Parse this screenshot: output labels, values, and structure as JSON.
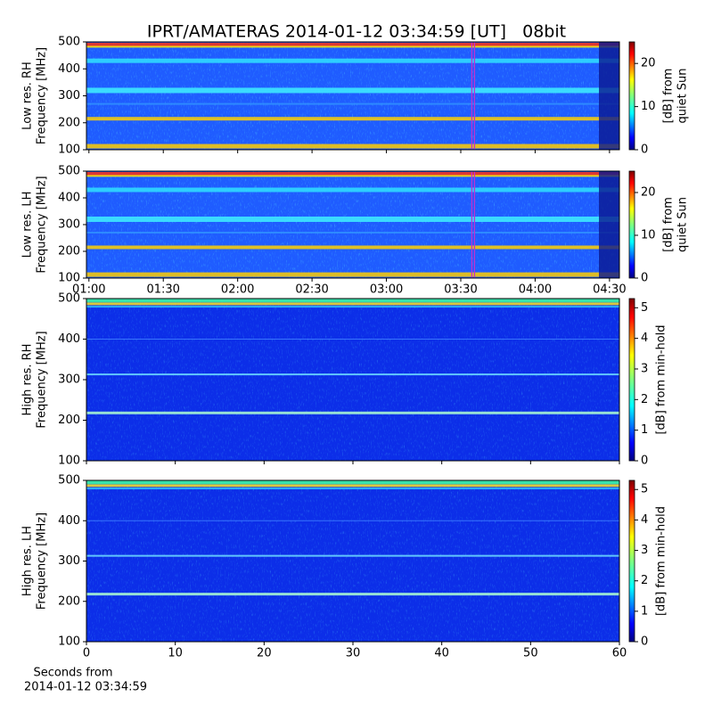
{
  "chart_data": [
    {
      "type": "spectrogram",
      "title": "IPRT/AMATERAS 2014-01-12 03:34:59 [UT]   08bit",
      "ylabel": [
        "Low res. RH",
        "Frequency [MHz]"
      ],
      "ylim": [
        100,
        500
      ],
      "yticks": [
        100,
        200,
        300,
        400,
        500
      ],
      "xlim": [
        59,
        274
      ],
      "xticks": [
        60,
        90,
        120,
        150,
        180,
        210,
        240,
        270
      ],
      "show_xtick_labels": false,
      "marker_x": 215,
      "marker_color": "#c030d0",
      "cmap": "jet",
      "clim": [
        0,
        25
      ],
      "cticks": [
        0,
        10,
        20
      ],
      "clabel": [
        "[dB] from",
        "quiet Sun"
      ]
    },
    {
      "type": "spectrogram",
      "ylabel": [
        "Low res. LH",
        "Frequency [MHz]"
      ],
      "ylim": [
        100,
        500
      ],
      "yticks": [
        100,
        200,
        300,
        400,
        500
      ],
      "xlim": [
        59,
        274
      ],
      "xticks": [
        {
          "value": 60,
          "label": "01:00"
        },
        {
          "value": 90,
          "label": "01:30"
        },
        {
          "value": 120,
          "label": "02:00"
        },
        {
          "value": 150,
          "label": "02:30"
        },
        {
          "value": 180,
          "label": "03:00"
        },
        {
          "value": 210,
          "label": "03:30"
        },
        {
          "value": 240,
          "label": "04:00"
        },
        {
          "value": 270,
          "label": "04:30"
        }
      ],
      "show_xtick_labels": true,
      "marker_x": 215,
      "marker_color": "#c030d0",
      "cmap": "jet",
      "clim": [
        0,
        25
      ],
      "cticks": [
        0,
        10,
        20
      ],
      "clabel": [
        "[dB] from",
        "quiet Sun"
      ]
    },
    {
      "type": "spectrogram",
      "ylabel": [
        "High res. RH",
        "Frequency [MHz]"
      ],
      "ylim": [
        100,
        500
      ],
      "yticks": [
        100,
        200,
        300,
        400,
        500
      ],
      "xlim": [
        0,
        60
      ],
      "xticks": [
        0,
        10,
        20,
        30,
        40,
        50,
        60
      ],
      "show_xtick_labels": false,
      "cmap": "jet",
      "clim": [
        0,
        5.3
      ],
      "cticks": [
        0,
        1,
        2,
        3,
        4,
        5
      ],
      "clabel": [
        "[dB] from min-hold"
      ]
    },
    {
      "type": "spectrogram",
      "ylabel": [
        "High res. LH",
        "Frequency [MHz]"
      ],
      "ylim": [
        100,
        500
      ],
      "yticks": [
        100,
        200,
        300,
        400,
        500
      ],
      "xlim": [
        0,
        60
      ],
      "xticks": [
        0,
        10,
        20,
        30,
        40,
        50,
        60
      ],
      "show_xtick_labels": true,
      "xlabel": [
        "Seconds from",
        "2014-01-12 03:34:59"
      ],
      "cmap": "jet",
      "clim": [
        0,
        5.3
      ],
      "cticks": [
        0,
        1,
        2,
        3,
        4,
        5
      ],
      "clabel": [
        "[dB] from min-hold"
      ]
    }
  ]
}
